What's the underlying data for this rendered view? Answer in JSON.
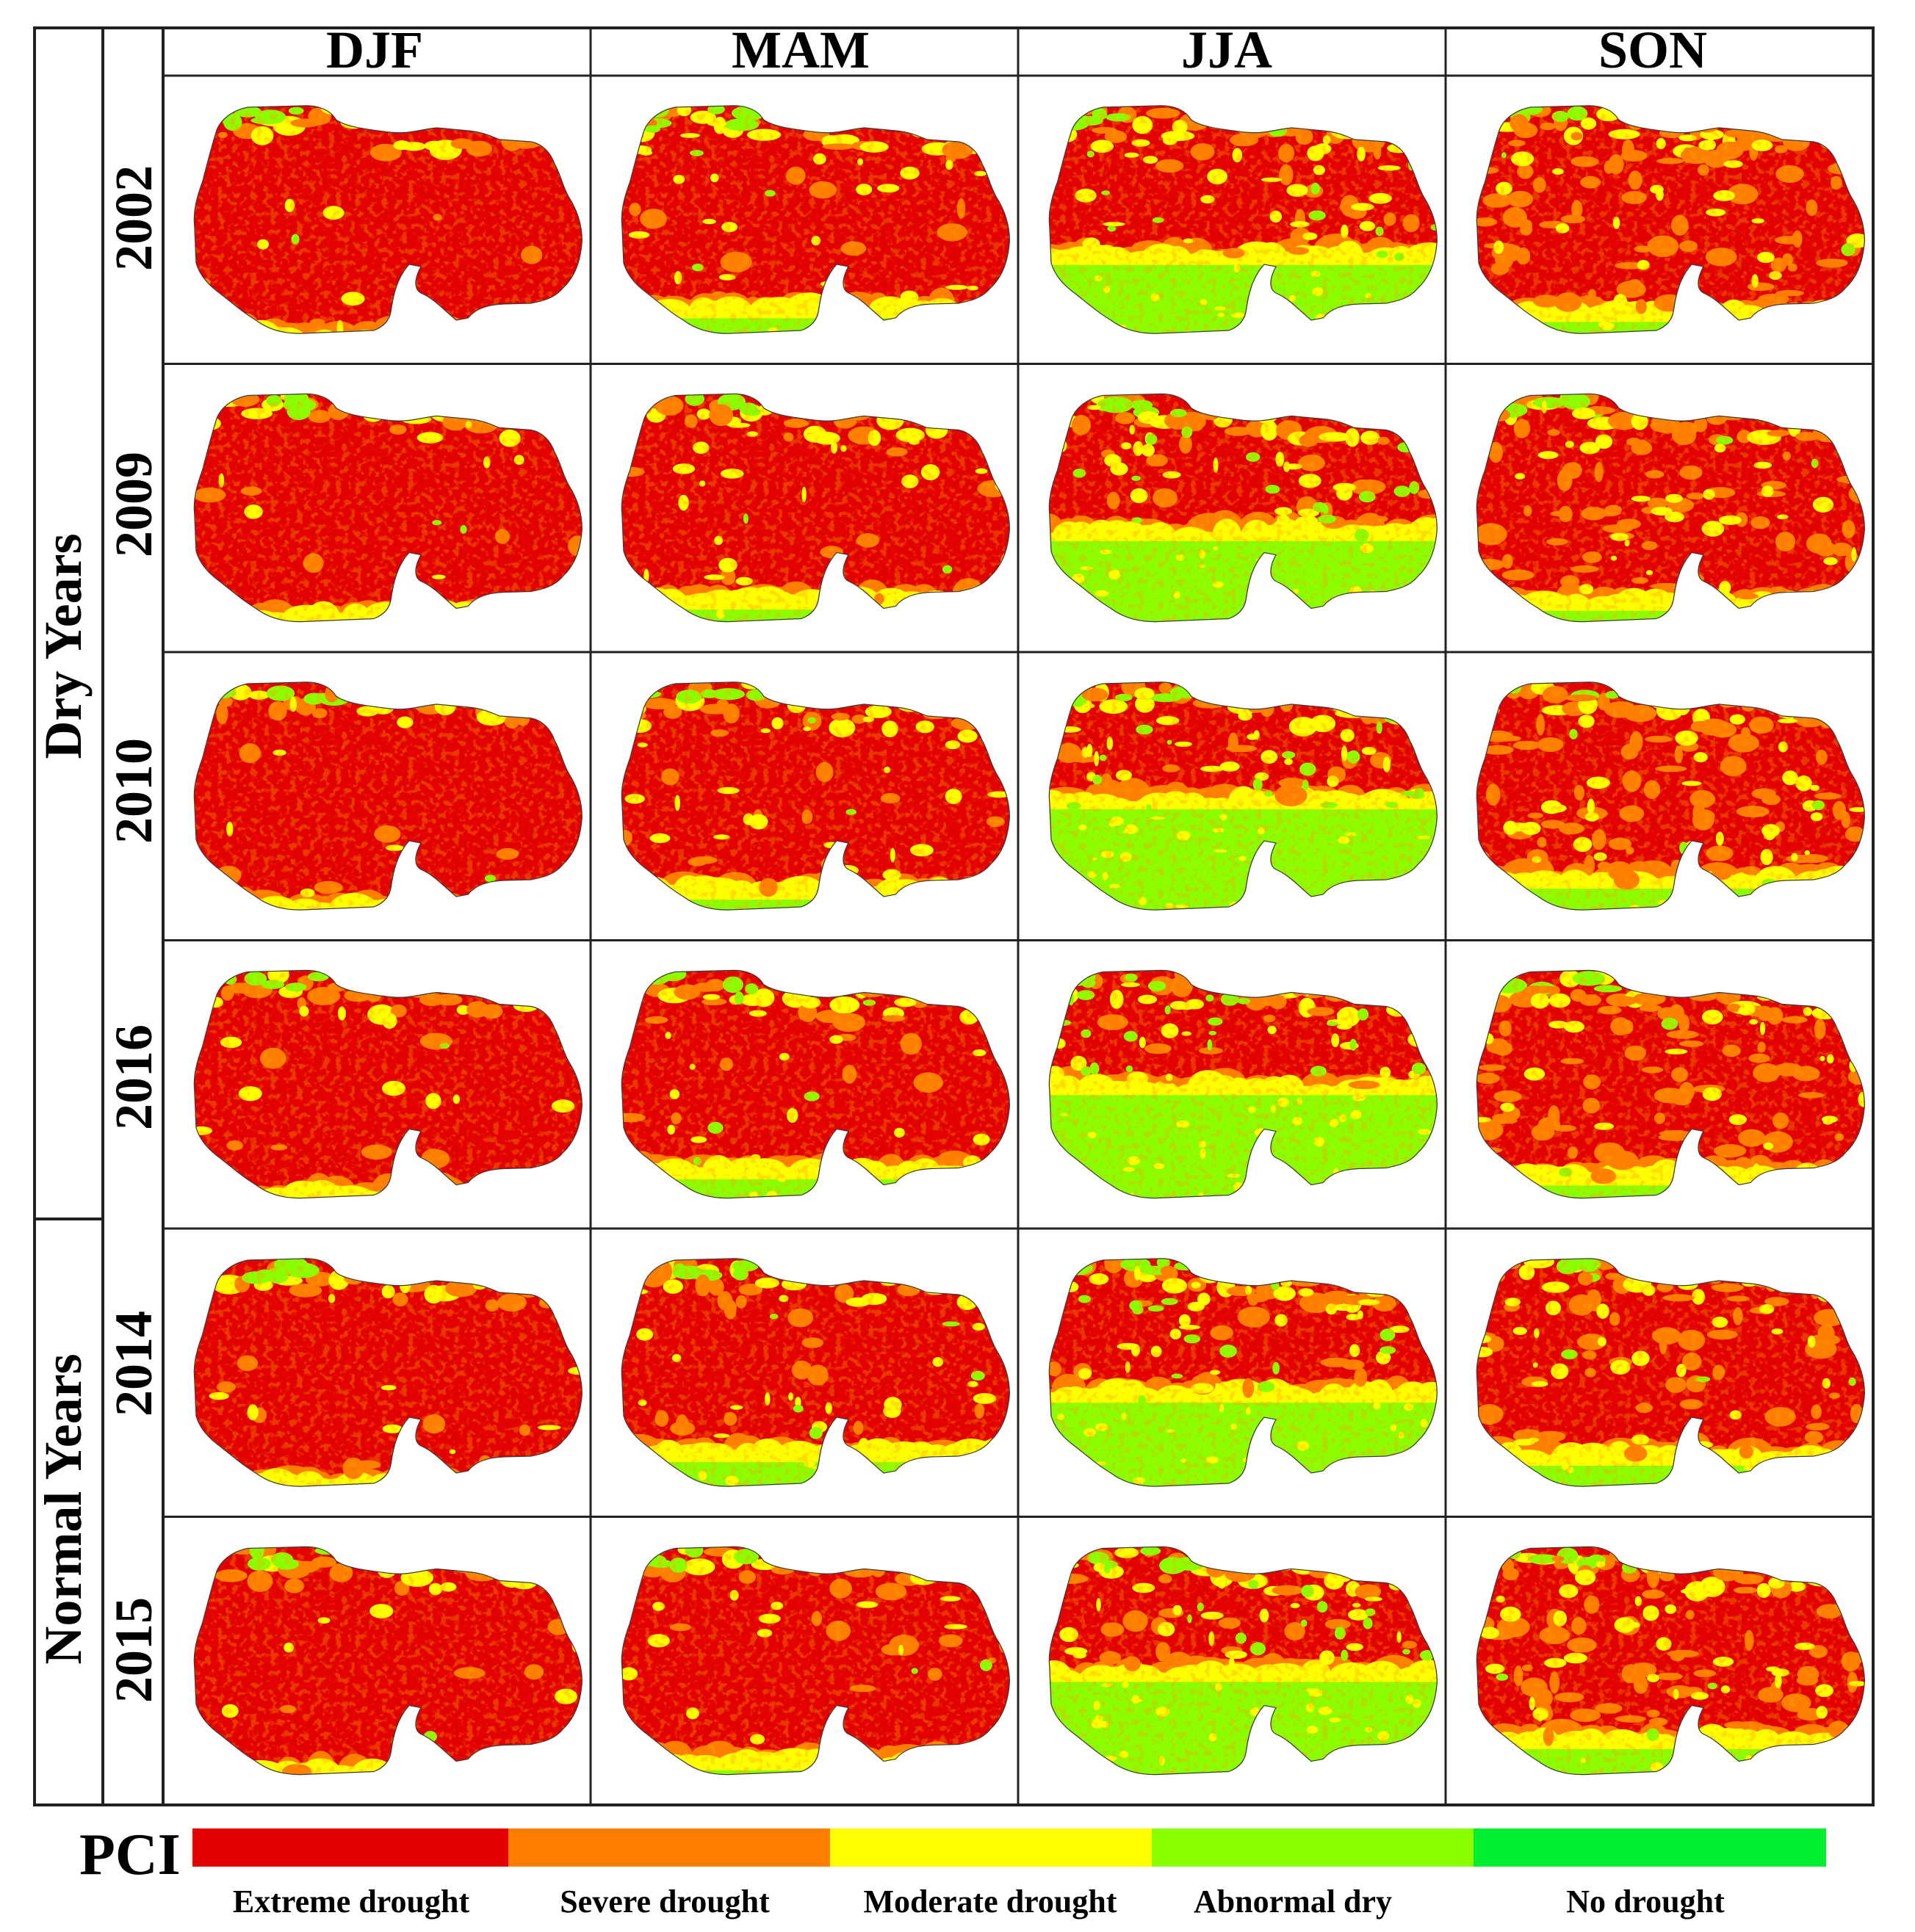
{
  "seasons": [
    "DJF",
    "MAM",
    "JJA",
    "SON"
  ],
  "groups": [
    {
      "label": "Dry Years",
      "years": [
        "2002",
        "2009",
        "2010",
        "2016"
      ]
    },
    {
      "label": "Normal Years",
      "years": [
        "2014",
        "2015"
      ]
    }
  ],
  "legend": {
    "title": "PCI",
    "classes": [
      {
        "label": "Extreme drought",
        "color": "#e30000"
      },
      {
        "label": "Severe drought",
        "color": "#ff7e00"
      },
      {
        "label": "Moderate drought",
        "color": "#ffff00"
      },
      {
        "label": "Abnormal dry",
        "color": "#8bff00"
      },
      {
        "label": "No drought",
        "color": "#00ee30"
      }
    ]
  },
  "maps": {
    "2002": [
      {
        "orange": 0.02,
        "yellow": 0.03,
        "green": 0.01,
        "bright": 0.0
      },
      {
        "orange": 0.05,
        "yellow": 0.12,
        "green": 0.06,
        "bright": 0.0
      },
      {
        "orange": 0.08,
        "yellow": 0.16,
        "green": 0.22,
        "bright": 0.02
      },
      {
        "orange": 0.28,
        "yellow": 0.14,
        "green": 0.04,
        "bright": 0.0
      }
    ],
    "2009": [
      {
        "orange": 0.03,
        "yellow": 0.04,
        "green": 0.03,
        "bright": 0.0
      },
      {
        "orange": 0.05,
        "yellow": 0.12,
        "green": 0.05,
        "bright": 0.0
      },
      {
        "orange": 0.07,
        "yellow": 0.16,
        "green": 0.26,
        "bright": 0.02
      },
      {
        "orange": 0.24,
        "yellow": 0.16,
        "green": 0.03,
        "bright": 0.0
      }
    ],
    "2010": [
      {
        "orange": 0.03,
        "yellow": 0.04,
        "green": 0.02,
        "bright": 0.0
      },
      {
        "orange": 0.06,
        "yellow": 0.13,
        "green": 0.04,
        "bright": 0.0
      },
      {
        "orange": 0.06,
        "yellow": 0.15,
        "green": 0.33,
        "bright": 0.02
      },
      {
        "orange": 0.25,
        "yellow": 0.17,
        "green": 0.06,
        "bright": 0.0
      }
    ],
    "2016": [
      {
        "orange": 0.04,
        "yellow": 0.05,
        "green": 0.02,
        "bright": 0.0
      },
      {
        "orange": 0.05,
        "yellow": 0.1,
        "green": 0.08,
        "bright": 0.0
      },
      {
        "orange": 0.05,
        "yellow": 0.12,
        "green": 0.35,
        "bright": 0.02
      },
      {
        "orange": 0.26,
        "yellow": 0.15,
        "green": 0.04,
        "bright": 0.0
      }
    ],
    "2014": [
      {
        "orange": 0.03,
        "yellow": 0.05,
        "green": 0.02,
        "bright": 0.0
      },
      {
        "orange": 0.07,
        "yellow": 0.12,
        "green": 0.09,
        "bright": 0.0
      },
      {
        "orange": 0.06,
        "yellow": 0.16,
        "green": 0.27,
        "bright": 0.02
      },
      {
        "orange": 0.2,
        "yellow": 0.14,
        "green": 0.07,
        "bright": 0.0
      }
    ],
    "2015": [
      {
        "orange": 0.03,
        "yellow": 0.04,
        "green": 0.02,
        "bright": 0.0
      },
      {
        "orange": 0.04,
        "yellow": 0.08,
        "green": 0.04,
        "bright": 0.0
      },
      {
        "orange": 0.06,
        "yellow": 0.16,
        "green": 0.3,
        "bright": 0.02
      },
      {
        "orange": 0.24,
        "yellow": 0.18,
        "green": 0.07,
        "bright": 0.0
      }
    ]
  }
}
